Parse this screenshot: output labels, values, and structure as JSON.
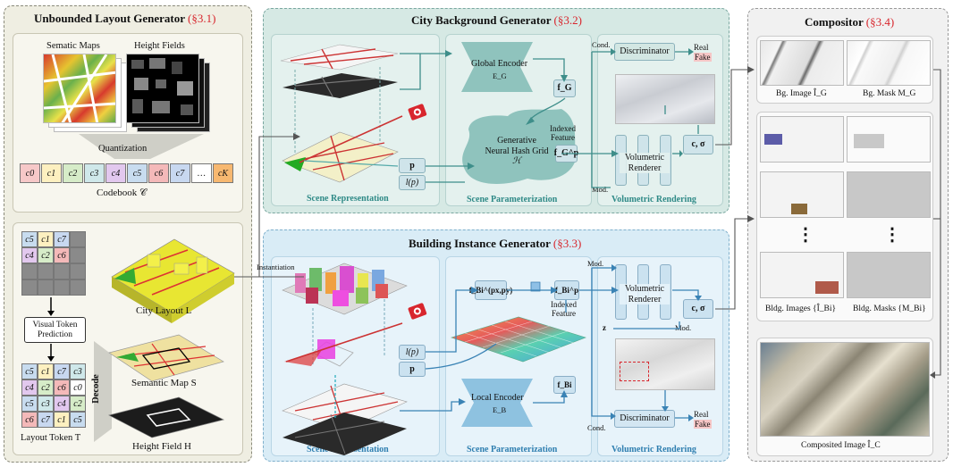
{
  "unbounded": {
    "title": "Unbounded Layout Generator",
    "section": "(§3.1)",
    "semantic_maps": "Sematic Maps",
    "height_fields": "Height Fields",
    "quantization": "Quantization",
    "codebook_tokens": [
      "c0",
      "c1",
      "c2",
      "c3",
      "c4",
      "c5",
      "c6",
      "c7",
      "…",
      "cK"
    ],
    "codebook_label": "Codebook 𝒞",
    "visual_token_prediction": "Visual Token Prediction",
    "decode": "Decode",
    "grid_top": [
      "c5",
      "c1",
      "c7",
      "c4",
      "c2",
      "c6"
    ],
    "grid_full": [
      "c5",
      "c1",
      "c7",
      "c3",
      "c4",
      "c2",
      "c6",
      "c0",
      "c5",
      "c3",
      "c4",
      "c2",
      "c6",
      "c7",
      "c1",
      "c5"
    ],
    "city_layout": "City Layout L",
    "semantic_map": "Semantic Map S",
    "height_field": "Height Field H",
    "layout_token": "Layout Token T"
  },
  "city_bg": {
    "title": "City Background Generator",
    "section": "(§3.2)",
    "global_encoder": "Global Encoder",
    "global_encoder_sub": "E_G",
    "f_g": "f_G",
    "hash_grid": [
      "Generative",
      "Neural Hash Grid",
      "ℋ"
    ],
    "indexed_feature": [
      "Indexed",
      "Feature"
    ],
    "f_g_p": "f_G^p",
    "p": "p",
    "l_p": "l(p)",
    "volumetric_renderer": [
      "Volumetric",
      "Renderer"
    ],
    "c_sigma": "c, σ",
    "discriminator": "Discriminator",
    "real": "Real",
    "fake": "Fake",
    "cond": "Cond.",
    "mod": "Mod.",
    "scene_representation": "Scene Representation",
    "scene_parameterization": "Scene Parameterization",
    "volumetric_rendering": "Volumetric Rendering"
  },
  "building": {
    "title": "Building Instance Generator",
    "section": "(§3.3)",
    "instantiation": "Instantiation",
    "f_b_pxy": "f_Bi^(px,py)",
    "f_b_p": "f_Bi^p",
    "indexed_feature": [
      "Indexed",
      "Feature"
    ],
    "l_p": "l(p)",
    "p": "p",
    "local_encoder": "Local Encoder",
    "local_encoder_sub": "E_B",
    "f_b": "f_Bi",
    "volumetric_renderer": [
      "Volumetric",
      "Renderer"
    ],
    "c_sigma": "c, σ",
    "z": "z",
    "mod": "Mod.",
    "cond": "Cond.",
    "discriminator": "Discriminator",
    "real": "Real",
    "fake": "Fake",
    "scene_representation": "Scene Representation",
    "scene_parameterization": "Scene Parameterization",
    "volumetric_rendering": "Volumetric Rendering"
  },
  "compositor": {
    "title": "Compositor",
    "section": "(§3.4)",
    "bg_image": "Bg. Image Î_G",
    "bg_mask": "Bg. Mask M_G",
    "bldg_images": "Bldg. Images {Î_Bi}",
    "bldg_masks": "Bldg. Masks {M_Bi}",
    "composited": "Composited Image Î_C",
    "vdots": "⋮"
  },
  "colors": {
    "unbounded_bg": "#efeee2",
    "city_bg": "#d6e9e4",
    "building_bg": "#d9ecf6",
    "compositor_bg": "#f1f1f1",
    "section_red": "#d8262d",
    "teal_box": "#8fc3bd",
    "teal_label": "#2f8a87",
    "blue_label": "#2f7fb0",
    "fake_bg": "#f6c6c6"
  }
}
